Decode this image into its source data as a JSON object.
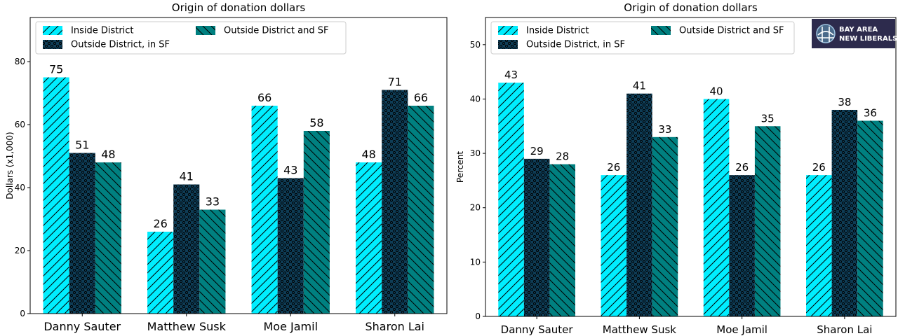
{
  "colors": {
    "inside": "#00eeff",
    "outside_sf": "#0e3d57",
    "outside_sf_and_district": "#008080"
  },
  "logo": {
    "icon": "bridge-logo-icon",
    "line1": "BAY AREA",
    "line2": "NEW LIBERALS",
    "background": "#2d2b4d"
  },
  "chart_data": [
    {
      "type": "bar",
      "title": "Origin of donation dollars",
      "xlabel": "",
      "ylabel": "Dollars (x1,000)",
      "ylim": [
        0,
        94
      ],
      "yticks": [
        0,
        20,
        40,
        60,
        80
      ],
      "grid": false,
      "legend_position": "top-left",
      "categories": [
        "Danny Sauter",
        "Matthew Susk",
        "Moe Jamil",
        "Sharon Lai"
      ],
      "series": [
        {
          "name": "Inside District",
          "values": [
            75,
            26,
            66,
            48
          ],
          "color": "#00eeff",
          "hatch": "diagonal-up"
        },
        {
          "name": "Outside District, in SF",
          "values": [
            51,
            41,
            43,
            71
          ],
          "color": "#0e3d57",
          "hatch": "dots"
        },
        {
          "name": "Outside District and SF",
          "values": [
            48,
            33,
            58,
            66
          ],
          "color": "#008080",
          "hatch": "diagonal-down"
        }
      ]
    },
    {
      "type": "bar",
      "title": "Origin of donation dollars",
      "xlabel": "",
      "ylabel": "Percent",
      "ylim": [
        0,
        55
      ],
      "yticks": [
        0,
        10,
        20,
        30,
        40,
        50
      ],
      "grid": false,
      "legend_position": "top-left",
      "categories": [
        "Danny Sauter",
        "Matthew Susk",
        "Moe Jamil",
        "Sharon Lai"
      ],
      "series": [
        {
          "name": "Inside District",
          "values": [
            43,
            26,
            40,
            26
          ],
          "color": "#00eeff",
          "hatch": "diagonal-up"
        },
        {
          "name": "Outside District, in SF",
          "values": [
            29,
            41,
            26,
            38
          ],
          "color": "#0e3d57",
          "hatch": "dots"
        },
        {
          "name": "Outside District and SF",
          "values": [
            28,
            33,
            35,
            36
          ],
          "color": "#008080",
          "hatch": "diagonal-down"
        }
      ]
    }
  ]
}
